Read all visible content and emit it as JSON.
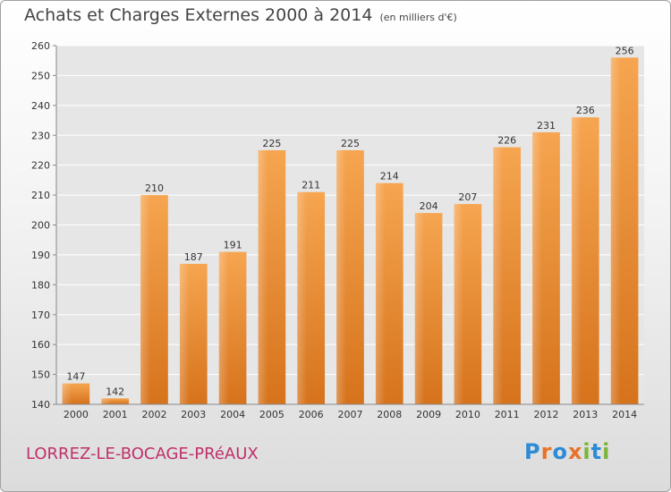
{
  "title": "Achats et Charges Externes 2000 à 2014",
  "unit_note": "(en milliers d'€)",
  "city": "LORREZ-LE-BOCAGE-PRéAUX",
  "logo": {
    "letters": [
      "P",
      "r",
      "o",
      "x",
      "i",
      "t",
      "i"
    ],
    "colors": [
      "#2e8bd6",
      "#e8732a",
      "#2e8bd6",
      "#e8732a",
      "#7ab53a",
      "#2e8bd6",
      "#7ab53a"
    ]
  },
  "chart_data": {
    "type": "bar",
    "categories": [
      "2000",
      "2001",
      "2002",
      "2003",
      "2004",
      "2005",
      "2006",
      "2007",
      "2008",
      "2009",
      "2010",
      "2011",
      "2012",
      "2013",
      "2014"
    ],
    "values": [
      147,
      142,
      210,
      187,
      191,
      225,
      211,
      225,
      214,
      204,
      207,
      226,
      231,
      236,
      256
    ],
    "data_labels": [
      "147",
      "142",
      "210",
      "187",
      "191",
      "225",
      "211",
      "225",
      "214",
      "204",
      "207",
      "226",
      "231",
      "236",
      "256"
    ],
    "ylim": [
      140,
      260
    ],
    "yticks": [
      140,
      150,
      160,
      170,
      180,
      190,
      200,
      210,
      220,
      230,
      240,
      250,
      260
    ],
    "ytick_labels": [
      "140",
      "150",
      "160",
      "170",
      "180",
      "190",
      "200",
      "210",
      "220",
      "230",
      "240",
      "250",
      "260"
    ],
    "grid": true,
    "bar_color": "#f0922e"
  }
}
